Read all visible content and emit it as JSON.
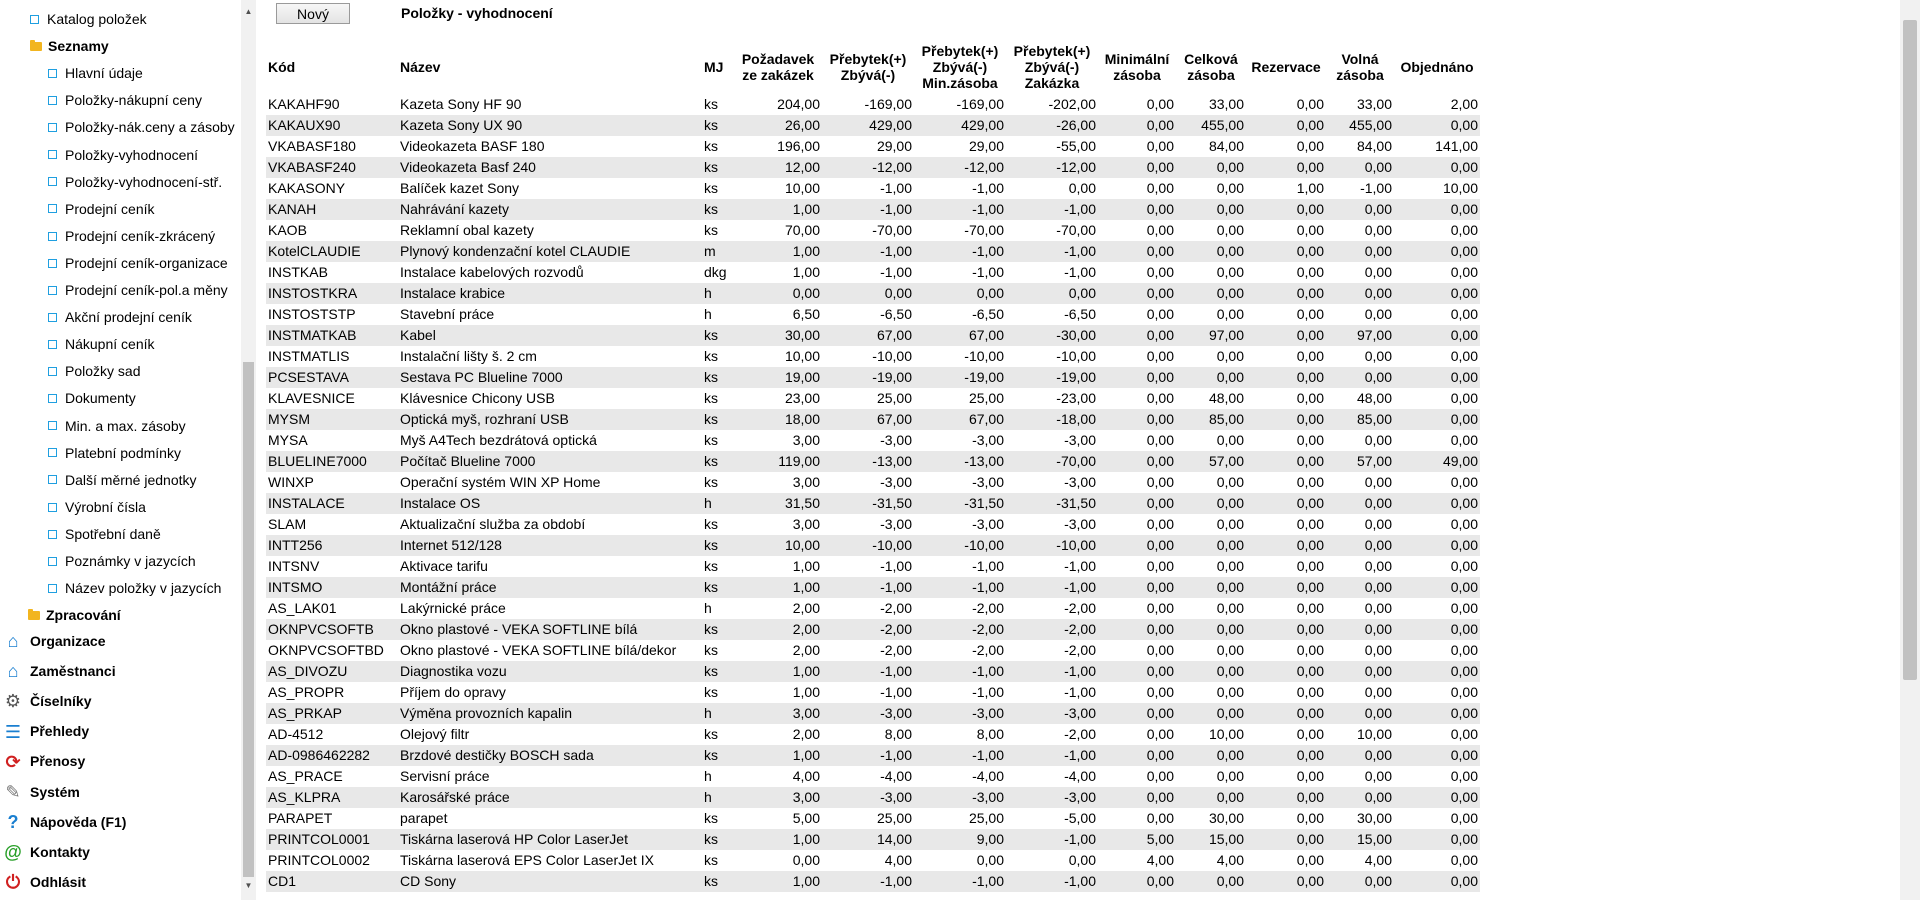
{
  "sidebar": {
    "tree": [
      {
        "label": "Katalog položek",
        "type": "leaf",
        "indent": 1
      },
      {
        "label": "Seznamy",
        "type": "folder",
        "indent": 1
      },
      {
        "label": "Hlavní údaje",
        "type": "leaf",
        "indent": 2
      },
      {
        "label": "Položky-nákupní ceny",
        "type": "leaf",
        "indent": 2
      },
      {
        "label": "Položky-nák.ceny a zásoby",
        "type": "leaf",
        "indent": 2
      },
      {
        "label": "Položky-vyhodnocení",
        "type": "leaf",
        "indent": 2
      },
      {
        "label": "Položky-vyhodnocení-stř.",
        "type": "leaf",
        "indent": 2
      },
      {
        "label": "Prodejní ceník",
        "type": "leaf",
        "indent": 2
      },
      {
        "label": "Prodejní ceník-zkrácený",
        "type": "leaf",
        "indent": 2
      },
      {
        "label": "Prodejní ceník-organizace",
        "type": "leaf",
        "indent": 2
      },
      {
        "label": "Prodejní ceník-pol.a měny",
        "type": "leaf",
        "indent": 2
      },
      {
        "label": "Akční prodejní ceník",
        "type": "leaf",
        "indent": 2
      },
      {
        "label": "Nákupní ceník",
        "type": "leaf",
        "indent": 2
      },
      {
        "label": "Položky sad",
        "type": "leaf",
        "indent": 2
      },
      {
        "label": "Dokumenty",
        "type": "leaf",
        "indent": 2
      },
      {
        "label": "Min. a max. zásoby",
        "type": "leaf",
        "indent": 2
      },
      {
        "label": "Platební podmínky",
        "type": "leaf",
        "indent": 2
      },
      {
        "label": "Další měrné jednotky",
        "type": "leaf",
        "indent": 2
      },
      {
        "label": "Výrobní čísla",
        "type": "leaf",
        "indent": 2
      },
      {
        "label": "Spotřební daně",
        "type": "leaf",
        "indent": 2
      },
      {
        "label": "Poznámky v jazycích",
        "type": "leaf",
        "indent": 2
      },
      {
        "label": "Název položky v jazycích",
        "type": "leaf",
        "indent": 2
      },
      {
        "label": "Zpracování",
        "type": "folder",
        "indent": 0
      }
    ],
    "nav": [
      {
        "label": "Organizace",
        "icon": "house-icon",
        "glyph": "⌂",
        "color": "#1a7fd0"
      },
      {
        "label": "Zaměstnanci",
        "icon": "house-person-icon",
        "glyph": "⌂",
        "color": "#1a7fd0"
      },
      {
        "label": "Číselníky",
        "icon": "gear-icon",
        "glyph": "⚙",
        "color": "#555555"
      },
      {
        "label": "Přehledy",
        "icon": "list-icon",
        "glyph": "☰",
        "color": "#1a7fd0"
      },
      {
        "label": "Přenosy",
        "icon": "sync-icon",
        "glyph": "⟳",
        "color": "#d02020"
      },
      {
        "label": "Systém",
        "icon": "wrench-icon",
        "glyph": "✎",
        "color": "#777777"
      },
      {
        "label": "Nápověda (F1)",
        "icon": "help-icon",
        "glyph": "?",
        "color": "#1a7fd0"
      },
      {
        "label": "Kontakty",
        "icon": "at-icon",
        "glyph": "@",
        "color": "#2aa02a"
      },
      {
        "label": "Odhlásit",
        "icon": "power-icon",
        "glyph": "⏻",
        "color": "#d02020"
      }
    ]
  },
  "toolbar": {
    "new_label": "Nový"
  },
  "page": {
    "title": "Položky - vyhodnocení"
  },
  "table": {
    "headers": [
      "Kód",
      "Název",
      "MJ",
      "Požadavek\nze zakázek",
      "Přebytek(+)\nZbývá(-)",
      "Přebytek(+)\nZbývá(-)\nMin.zásoba",
      "Přebytek(+)\nZbývá(-)\nZakázka",
      "Minimální\nzásoba",
      "Celková\nzásoba",
      "Rezervace",
      "Volná\nzásoba",
      "Objednáno"
    ],
    "rows": [
      [
        "KAKAHF90",
        "Kazeta Sony HF 90",
        "ks",
        "204,00",
        "-169,00",
        "-169,00",
        "-202,00",
        "0,00",
        "33,00",
        "0,00",
        "33,00",
        "2,00"
      ],
      [
        "KAKAUX90",
        "Kazeta Sony UX 90",
        "ks",
        "26,00",
        "429,00",
        "429,00",
        "-26,00",
        "0,00",
        "455,00",
        "0,00",
        "455,00",
        "0,00"
      ],
      [
        "VKABASF180",
        "Videokazeta BASF 180",
        "ks",
        "196,00",
        "29,00",
        "29,00",
        "-55,00",
        "0,00",
        "84,00",
        "0,00",
        "84,00",
        "141,00"
      ],
      [
        "VKABASF240",
        "Videokazeta Basf 240",
        "ks",
        "12,00",
        "-12,00",
        "-12,00",
        "-12,00",
        "0,00",
        "0,00",
        "0,00",
        "0,00",
        "0,00"
      ],
      [
        "KAKASONY",
        "Balíček kazet Sony",
        "ks",
        "10,00",
        "-1,00",
        "-1,00",
        "0,00",
        "0,00",
        "0,00",
        "1,00",
        "-1,00",
        "10,00"
      ],
      [
        "KANAH",
        "Nahrávání kazety",
        "ks",
        "1,00",
        "-1,00",
        "-1,00",
        "-1,00",
        "0,00",
        "0,00",
        "0,00",
        "0,00",
        "0,00"
      ],
      [
        "KAOB",
        "Reklamní obal kazety",
        "ks",
        "70,00",
        "-70,00",
        "-70,00",
        "-70,00",
        "0,00",
        "0,00",
        "0,00",
        "0,00",
        "0,00"
      ],
      [
        "KotelCLAUDIE",
        "Plynový kondenzační kotel CLAUDIE",
        "m",
        "1,00",
        "-1,00",
        "-1,00",
        "-1,00",
        "0,00",
        "0,00",
        "0,00",
        "0,00",
        "0,00"
      ],
      [
        "INSTKAB",
        "Instalace kabelových rozvodů",
        "dkg",
        "1,00",
        "-1,00",
        "-1,00",
        "-1,00",
        "0,00",
        "0,00",
        "0,00",
        "0,00",
        "0,00"
      ],
      [
        "INSTOSTKRA",
        "Instalace krabice",
        "h",
        "0,00",
        "0,00",
        "0,00",
        "0,00",
        "0,00",
        "0,00",
        "0,00",
        "0,00",
        "0,00"
      ],
      [
        "INSTOSTSTP",
        "Stavební práce",
        "h",
        "6,50",
        "-6,50",
        "-6,50",
        "-6,50",
        "0,00",
        "0,00",
        "0,00",
        "0,00",
        "0,00"
      ],
      [
        "INSTMATKAB",
        "Kabel",
        "ks",
        "30,00",
        "67,00",
        "67,00",
        "-30,00",
        "0,00",
        "97,00",
        "0,00",
        "97,00",
        "0,00"
      ],
      [
        "INSTMATLIS",
        "Instalační lišty š. 2 cm",
        "ks",
        "10,00",
        "-10,00",
        "-10,00",
        "-10,00",
        "0,00",
        "0,00",
        "0,00",
        "0,00",
        "0,00"
      ],
      [
        "PCSESTAVA",
        "Sestava PC Blueline 7000",
        "ks",
        "19,00",
        "-19,00",
        "-19,00",
        "-19,00",
        "0,00",
        "0,00",
        "0,00",
        "0,00",
        "0,00"
      ],
      [
        "KLAVESNICE",
        "Klávesnice Chicony USB",
        "ks",
        "23,00",
        "25,00",
        "25,00",
        "-23,00",
        "0,00",
        "48,00",
        "0,00",
        "48,00",
        "0,00"
      ],
      [
        "MYSM",
        "Optická myš, rozhraní USB",
        "ks",
        "18,00",
        "67,00",
        "67,00",
        "-18,00",
        "0,00",
        "85,00",
        "0,00",
        "85,00",
        "0,00"
      ],
      [
        "MYSA",
        "Myš A4Tech bezdrátová optická",
        "ks",
        "3,00",
        "-3,00",
        "-3,00",
        "-3,00",
        "0,00",
        "0,00",
        "0,00",
        "0,00",
        "0,00"
      ],
      [
        "BLUELINE7000",
        "Počítač Blueline 7000",
        "ks",
        "119,00",
        "-13,00",
        "-13,00",
        "-70,00",
        "0,00",
        "57,00",
        "0,00",
        "57,00",
        "49,00"
      ],
      [
        "WINXP",
        "Operační systém WIN XP Home",
        "ks",
        "3,00",
        "-3,00",
        "-3,00",
        "-3,00",
        "0,00",
        "0,00",
        "0,00",
        "0,00",
        "0,00"
      ],
      [
        "INSTALACE",
        "Instalace OS",
        "h",
        "31,50",
        "-31,50",
        "-31,50",
        "-31,50",
        "0,00",
        "0,00",
        "0,00",
        "0,00",
        "0,00"
      ],
      [
        "SLAM",
        "Aktualizační služba za období",
        "ks",
        "3,00",
        "-3,00",
        "-3,00",
        "-3,00",
        "0,00",
        "0,00",
        "0,00",
        "0,00",
        "0,00"
      ],
      [
        "INTT256",
        "Internet 512/128",
        "ks",
        "10,00",
        "-10,00",
        "-10,00",
        "-10,00",
        "0,00",
        "0,00",
        "0,00",
        "0,00",
        "0,00"
      ],
      [
        "INTSNV",
        "Aktivace tarifu",
        "ks",
        "1,00",
        "-1,00",
        "-1,00",
        "-1,00",
        "0,00",
        "0,00",
        "0,00",
        "0,00",
        "0,00"
      ],
      [
        "INTSMO",
        "Montážní práce",
        "ks",
        "1,00",
        "-1,00",
        "-1,00",
        "-1,00",
        "0,00",
        "0,00",
        "0,00",
        "0,00",
        "0,00"
      ],
      [
        "AS_LAK01",
        "Lakýrnické práce",
        "h",
        "2,00",
        "-2,00",
        "-2,00",
        "-2,00",
        "0,00",
        "0,00",
        "0,00",
        "0,00",
        "0,00"
      ],
      [
        "OKNPVCSOFTB",
        "Okno plastové - VEKA SOFTLINE bílá",
        "ks",
        "2,00",
        "-2,00",
        "-2,00",
        "-2,00",
        "0,00",
        "0,00",
        "0,00",
        "0,00",
        "0,00"
      ],
      [
        "OKNPVCSOFTBD",
        "Okno plastové - VEKA SOFTLINE bílá/dekor",
        "ks",
        "2,00",
        "-2,00",
        "-2,00",
        "-2,00",
        "0,00",
        "0,00",
        "0,00",
        "0,00",
        "0,00"
      ],
      [
        "AS_DIVOZU",
        "Diagnostika vozu",
        "ks",
        "1,00",
        "-1,00",
        "-1,00",
        "-1,00",
        "0,00",
        "0,00",
        "0,00",
        "0,00",
        "0,00"
      ],
      [
        "AS_PROPR",
        "Příjem do opravy",
        "ks",
        "1,00",
        "-1,00",
        "-1,00",
        "-1,00",
        "0,00",
        "0,00",
        "0,00",
        "0,00",
        "0,00"
      ],
      [
        "AS_PRKAP",
        "Výměna provozních kapalin",
        "h",
        "3,00",
        "-3,00",
        "-3,00",
        "-3,00",
        "0,00",
        "0,00",
        "0,00",
        "0,00",
        "0,00"
      ],
      [
        "AD-4512",
        "Olejový filtr",
        "ks",
        "2,00",
        "8,00",
        "8,00",
        "-2,00",
        "0,00",
        "10,00",
        "0,00",
        "10,00",
        "0,00"
      ],
      [
        "AD-0986462282",
        "Brzdové destičky BOSCH sada",
        "ks",
        "1,00",
        "-1,00",
        "-1,00",
        "-1,00",
        "0,00",
        "0,00",
        "0,00",
        "0,00",
        "0,00"
      ],
      [
        "AS_PRACE",
        "Servisní práce",
        "h",
        "4,00",
        "-4,00",
        "-4,00",
        "-4,00",
        "0,00",
        "0,00",
        "0,00",
        "0,00",
        "0,00"
      ],
      [
        "AS_KLPRA",
        "Karosářské práce",
        "h",
        "3,00",
        "-3,00",
        "-3,00",
        "-3,00",
        "0,00",
        "0,00",
        "0,00",
        "0,00",
        "0,00"
      ],
      [
        "PARAPET",
        "parapet",
        "ks",
        "5,00",
        "25,00",
        "25,00",
        "-5,00",
        "0,00",
        "30,00",
        "0,00",
        "30,00",
        "0,00"
      ],
      [
        "PRINTCOL0001",
        "Tiskárna laserová HP Color LaserJet",
        "ks",
        "1,00",
        "14,00",
        "9,00",
        "-1,00",
        "5,00",
        "15,00",
        "0,00",
        "15,00",
        "0,00"
      ],
      [
        "PRINTCOL0002",
        "Tiskárna laserová EPS Color LaserJet IX",
        "ks",
        "0,00",
        "4,00",
        "0,00",
        "0,00",
        "4,00",
        "4,00",
        "0,00",
        "4,00",
        "0,00"
      ],
      [
        "CD1",
        "CD Sony",
        "ks",
        "1,00",
        "-1,00",
        "-1,00",
        "-1,00",
        "0,00",
        "0,00",
        "0,00",
        "0,00",
        "0,00"
      ]
    ]
  }
}
